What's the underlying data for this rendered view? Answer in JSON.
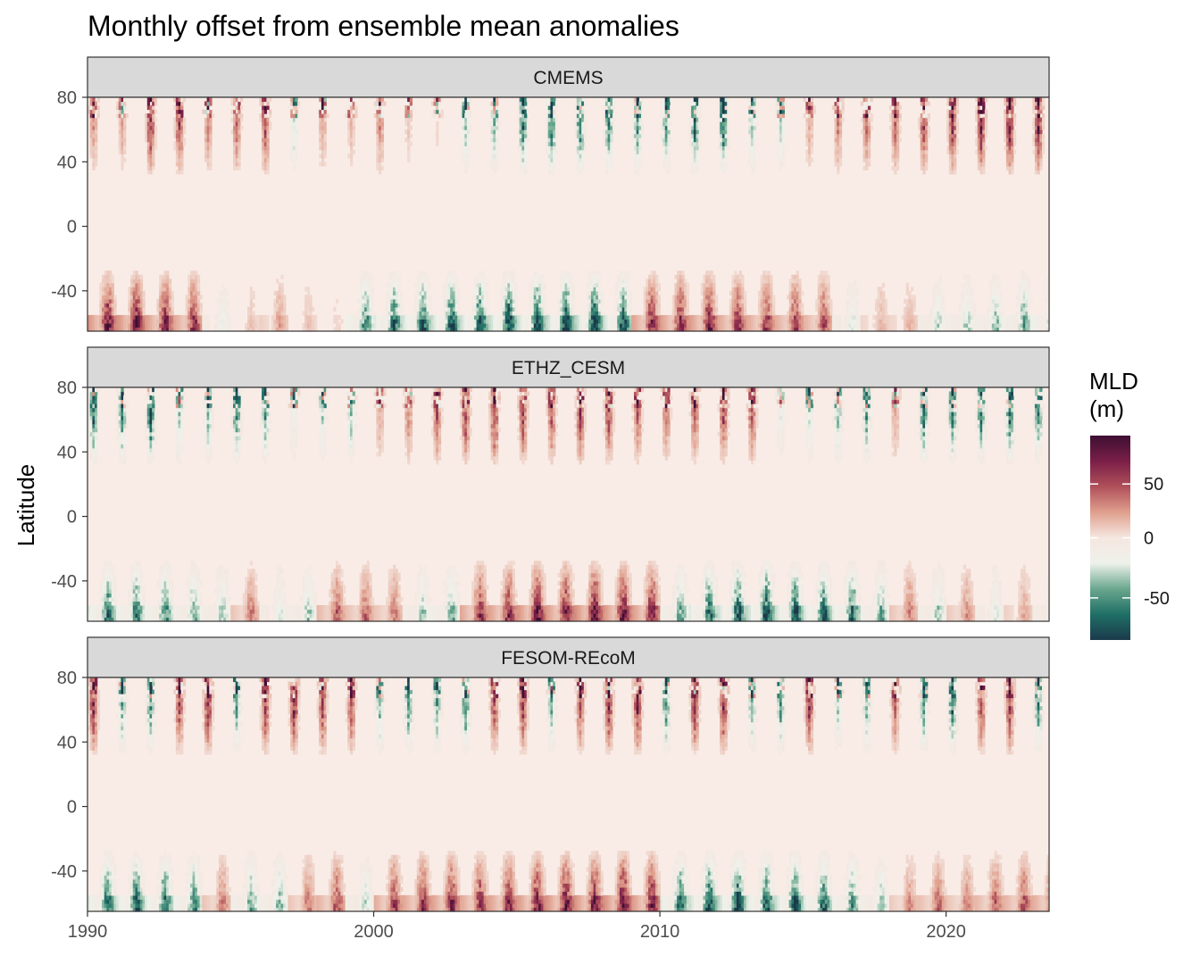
{
  "chart_data": {
    "type": "heatmap",
    "title": "Monthly offset from ensemble mean anomalies",
    "xlabel": "",
    "ylabel": "Latitude",
    "xlim": [
      1990,
      2023.6
    ],
    "ylim": [
      -65,
      80
    ],
    "x_ticks": [
      1990,
      2000,
      2010,
      2020
    ],
    "y_ticks": [
      80,
      40,
      0,
      -40
    ],
    "y_tick_labels": [
      "80",
      "40",
      "0",
      "-40"
    ],
    "grid": false,
    "legend": {
      "title_line1": "MLD",
      "title_line2": "(m)",
      "placement": "right",
      "range": [
        -85,
        95
      ],
      "ticks": [
        50,
        0,
        -50
      ],
      "tick_labels": [
        "50",
        "0",
        "-50"
      ],
      "colors": [
        "#1b3a4b",
        "#1f6f66",
        "#6aa78e",
        "#eef1ea",
        "#f5e7e0",
        "#e0a08e",
        "#b0505a",
        "#7a1f48",
        "#3e0f32"
      ]
    },
    "panels": [
      {
        "name": "CMEMS",
        "north_offsets_annual": [
          25,
          20,
          60,
          55,
          30,
          40,
          45,
          -30,
          20,
          15,
          30,
          10,
          5,
          -35,
          -40,
          -60,
          -70,
          -65,
          -55,
          -50,
          -45,
          -60,
          -65,
          -40,
          -30,
          20,
          30,
          35,
          40,
          50,
          60,
          65,
          70,
          70
        ],
        "south_offsets_annual": [
          70,
          75,
          65,
          55,
          -15,
          10,
          20,
          10,
          5,
          -50,
          -60,
          -65,
          -70,
          -70,
          -75,
          -70,
          -75,
          -80,
          -70,
          60,
          60,
          65,
          55,
          55,
          50,
          45,
          -20,
          15,
          15,
          -25,
          -30,
          -35,
          -40,
          -45
        ]
      },
      {
        "name": "ETHZ_CESM",
        "north_offsets_annual": [
          -60,
          -50,
          -70,
          -30,
          -40,
          -55,
          -45,
          -20,
          -30,
          -35,
          20,
          30,
          45,
          55,
          60,
          50,
          45,
          55,
          50,
          40,
          35,
          40,
          50,
          45,
          -20,
          -30,
          -40,
          -45,
          20,
          -60,
          -50,
          -55,
          -60,
          -50
        ],
        "south_offsets_annual": [
          -60,
          -55,
          -50,
          -40,
          -30,
          30,
          -20,
          -30,
          40,
          35,
          30,
          -30,
          -40,
          55,
          60,
          70,
          65,
          75,
          70,
          65,
          -40,
          -60,
          -70,
          -75,
          -70,
          -65,
          -60,
          -40,
          30,
          -30,
          25,
          -20,
          20,
          -25
        ]
      },
      {
        "name": "FESOM-REcoM",
        "north_offsets_annual": [
          60,
          -40,
          -50,
          50,
          65,
          -45,
          55,
          60,
          50,
          45,
          -40,
          -50,
          -45,
          -55,
          50,
          55,
          -40,
          45,
          60,
          65,
          -50,
          55,
          60,
          -40,
          -45,
          55,
          -30,
          -40,
          40,
          -45,
          -60,
          50,
          55,
          -50
        ],
        "south_offsets_annual": [
          -60,
          -65,
          -60,
          -50,
          30,
          -40,
          -35,
          30,
          45,
          -25,
          50,
          55,
          60,
          55,
          60,
          65,
          70,
          70,
          75,
          65,
          -60,
          -70,
          -75,
          -65,
          -70,
          -60,
          -45,
          -30,
          25,
          35,
          30,
          40,
          45,
          50
        ]
      }
    ]
  }
}
